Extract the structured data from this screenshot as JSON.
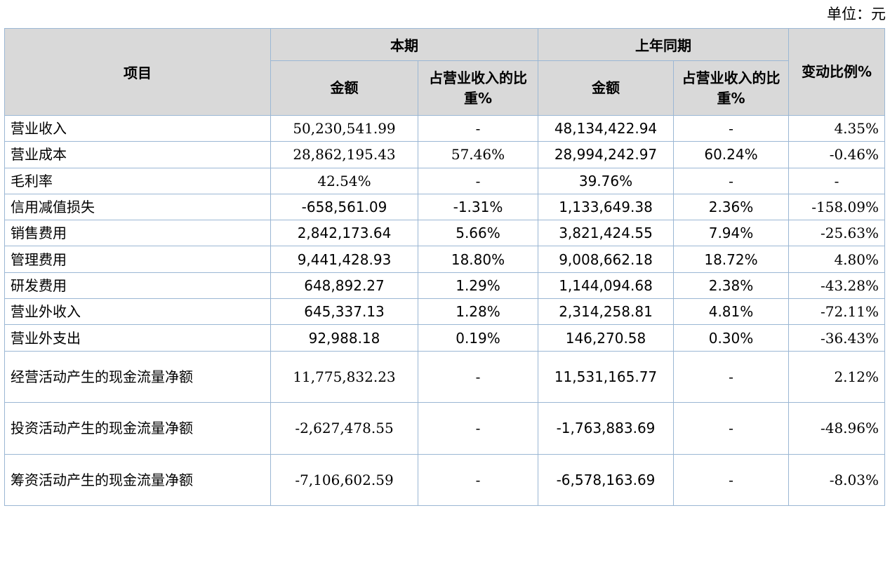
{
  "unit_label": "单位：元",
  "header": {
    "item": "项目",
    "current_period": "本期",
    "prior_period": "上年同期",
    "change": "变动比例%",
    "amount": "金额",
    "share": "占营业收入的比重%"
  },
  "rows": [
    {
      "item": "营业收入",
      "cur_amount": "50,230,541.99",
      "cur_share": "-",
      "prev_amount": "48,134,422.94",
      "prev_share": "-",
      "change": "4.35%"
    },
    {
      "item": "营业成本",
      "cur_amount": "28,862,195.43",
      "cur_share": "57.46%",
      "prev_amount": "28,994,242.97",
      "prev_share": "60.24%",
      "change": "-0.46%"
    },
    {
      "item": "毛利率",
      "cur_amount": "42.54%",
      "cur_share": "-",
      "prev_amount": "39.76%",
      "prev_share": "-",
      "change": "-"
    },
    {
      "item": "信用减值损失",
      "cur_amount": "-658,561.09",
      "cur_share": "-1.31%",
      "prev_amount": "1,133,649.38",
      "prev_share": "2.36%",
      "change": "-158.09%"
    },
    {
      "item": "销售费用",
      "cur_amount": "2,842,173.64",
      "cur_share": "5.66%",
      "prev_amount": "3,821,424.55",
      "prev_share": "7.94%",
      "change": "-25.63%"
    },
    {
      "item": "管理费用",
      "cur_amount": "9,441,428.93",
      "cur_share": "18.80%",
      "prev_amount": "9,008,662.18",
      "prev_share": "18.72%",
      "change": "4.80%"
    },
    {
      "item": "研发费用",
      "cur_amount": "648,892.27",
      "cur_share": "1.29%",
      "prev_amount": "1,144,094.68",
      "prev_share": "2.38%",
      "change": "-43.28%"
    },
    {
      "item": "营业外收入",
      "cur_amount": "645,337.13",
      "cur_share": "1.28%",
      "prev_amount": "2,314,258.81",
      "prev_share": "4.81%",
      "change": "-72.11%"
    },
    {
      "item": "营业外支出",
      "cur_amount": "92,988.18",
      "cur_share": "0.19%",
      "prev_amount": "146,270.58",
      "prev_share": "0.30%",
      "change": "-36.43%"
    },
    {
      "item": "经营活动产生的现金流量净额",
      "cur_amount": "11,775,832.23",
      "cur_share": "-",
      "prev_amount": "11,531,165.77",
      "prev_share": "-",
      "change": "2.12%"
    },
    {
      "item": "投资活动产生的现金流量净额",
      "cur_amount": "-2,627,478.55",
      "cur_share": "-",
      "prev_amount": "-1,763,883.69",
      "prev_share": "-",
      "change": "-48.96%"
    },
    {
      "item": "筹资活动产生的现金流量净额",
      "cur_amount": "-7,106,602.59",
      "cur_share": "-",
      "prev_amount": "-6,578,163.69",
      "prev_share": "-",
      "change": "-8.03%"
    }
  ]
}
